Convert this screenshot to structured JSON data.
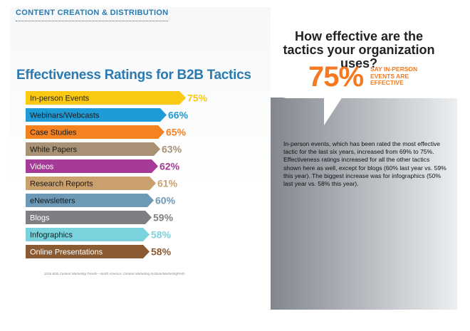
{
  "header": {
    "section": "CONTENT CREATION & DISTRIBUTION"
  },
  "callout": {
    "question": "How effective are the tactics your organization uses?",
    "stat": "75%",
    "stat_caption": "SAY IN-PERSON EVENTS ARE EFFECTIVE",
    "description": "In-person events, which has been rated the most effective tactic for the last six years, increased from 69% to 75%. Effectiveness ratings increased for all the other tactics shown here as well, except for blogs (60% last year vs. 59% this year). The biggest increase was for infographics (50% last year vs. 58% this year)."
  },
  "source": "2016 B2B Content Marketing Trends—North America: Content Marketing Institute/MarketingProfs",
  "chart_data": {
    "type": "bar",
    "orientation": "horizontal",
    "title": "Effectiveness Ratings for B2B Tactics",
    "xlabel": "",
    "ylabel": "",
    "xlim": [
      0,
      100
    ],
    "categories": [
      "In-person Events",
      "Webinars/Webcasts",
      "Case Studies",
      "White Papers",
      "Videos",
      "Research Reports",
      "eNewsletters",
      "Blogs",
      "Infographics",
      "Online Presentations"
    ],
    "values": [
      75,
      66,
      65,
      63,
      62,
      61,
      60,
      59,
      58,
      58
    ],
    "value_labels": [
      "75%",
      "66%",
      "65%",
      "63%",
      "62%",
      "61%",
      "60%",
      "59%",
      "58%",
      "58%"
    ],
    "colors": [
      "#f9c913",
      "#1f9bd7",
      "#f58220",
      "#a89175",
      "#a53a97",
      "#c9a06e",
      "#6c9ab6",
      "#7d7f82",
      "#7ad3dc",
      "#8a5a32"
    ],
    "grid": false,
    "legend": "none"
  }
}
